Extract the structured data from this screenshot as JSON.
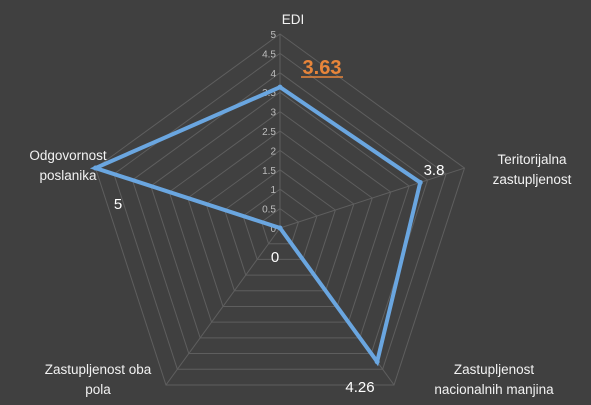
{
  "chart_data": {
    "type": "radar",
    "categories": [
      "EDI",
      "Teritorijalna zastupljenost",
      "Zastupljenost nacionalnih manjina",
      "Zastupljenost oba pola",
      "Odgovornost poslanika"
    ],
    "category_lines": [
      [
        "EDI"
      ],
      [
        "Teritorijalna",
        "zastupljenost"
      ],
      [
        "Zastupljenost",
        "nacionalnih manjina"
      ],
      [
        "Zastupljenost oba",
        "pola"
      ],
      [
        "Odgovornost",
        "poslanika"
      ]
    ],
    "values": [
      3.63,
      3.8,
      4.26,
      0,
      5
    ],
    "value_labels": [
      "3.63",
      "3.8",
      "4.26",
      "0",
      "5"
    ],
    "radial_range": [
      0,
      5
    ],
    "radial_ticks": [
      "0",
      "0.5",
      "1",
      "1.5",
      "2",
      "2.5",
      "3",
      "3.5",
      "4",
      "4.5",
      "5"
    ],
    "grid": true,
    "colors": {
      "series": "#6aa6e0",
      "highlight_label": "#e8853a",
      "background": "#404040",
      "grid": "#5e5e5e"
    }
  }
}
